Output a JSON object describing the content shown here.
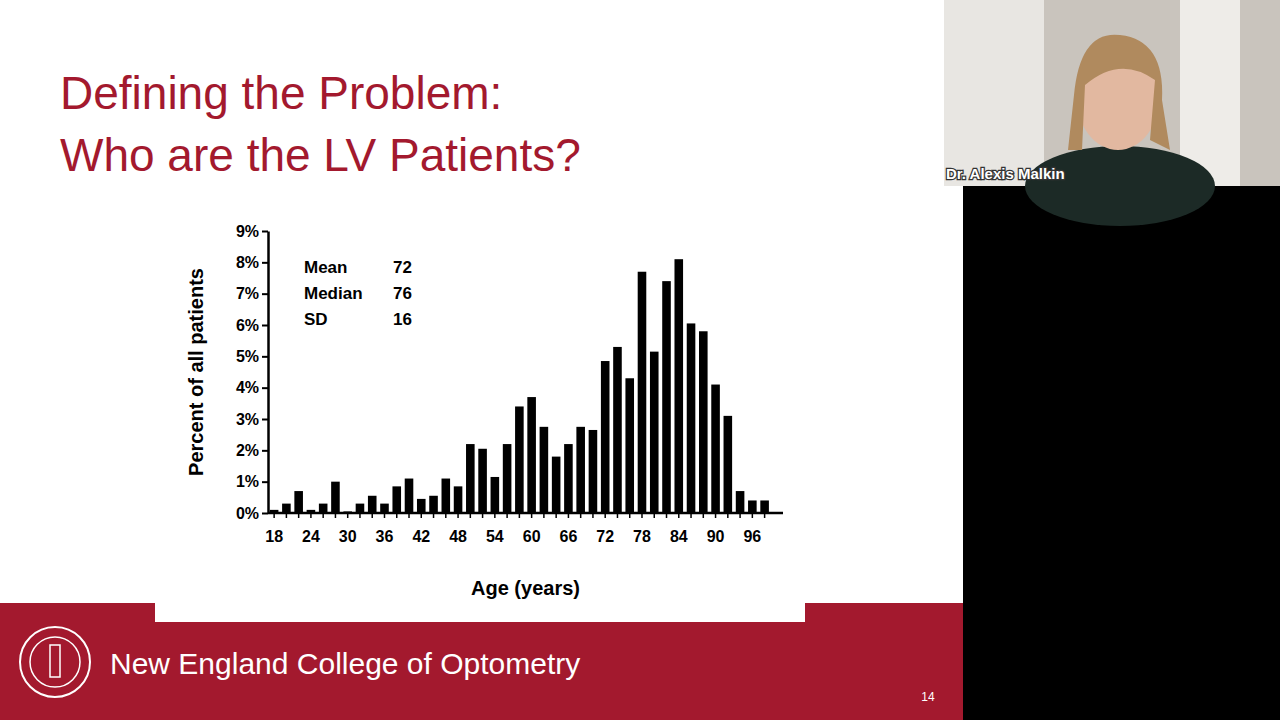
{
  "slide": {
    "title": [
      "Defining the Problem:",
      "Who are the LV Patients?"
    ],
    "footer": "New England College of Optometry",
    "page_number": 14
  },
  "video": {
    "speaker": "Dr. Alexis Malkin"
  },
  "chart_data": {
    "type": "bar",
    "x_label": "Age (years)",
    "y_label": "Percent of all patients",
    "categories": [
      "18",
      null,
      null,
      "24",
      null,
      null,
      "30",
      null,
      null,
      "36",
      null,
      null,
      "42",
      null,
      null,
      "48",
      null,
      null,
      "54",
      null,
      null,
      "60",
      null,
      null,
      "66",
      null,
      null,
      "72",
      null,
      null,
      "78",
      null,
      null,
      "84",
      null,
      null,
      "90",
      null,
      null,
      "96",
      null
    ],
    "values": [
      0.1,
      0.3,
      0.7,
      0.1,
      0.3,
      1.0,
      0.05,
      0.3,
      0.55,
      0.3,
      0.85,
      1.1,
      0.45,
      0.55,
      1.1,
      0.85,
      2.2,
      2.05,
      1.15,
      2.2,
      3.4,
      3.7,
      2.75,
      1.8,
      2.2,
      2.75,
      2.65,
      4.85,
      5.3,
      4.3,
      7.7,
      5.15,
      7.4,
      8.1,
      6.05,
      5.8,
      4.1,
      3.1,
      0.7,
      0.4,
      0.4
    ],
    "color": "#000000",
    "ylim": [
      0,
      9
    ],
    "yticks": [
      {
        "value": 0,
        "label": "0%"
      },
      {
        "value": 1,
        "label": "1%"
      },
      {
        "value": 2,
        "label": "2%"
      },
      {
        "value": 3,
        "label": "3%"
      },
      {
        "value": 4,
        "label": "4%"
      },
      {
        "value": 5,
        "label": "5%"
      },
      {
        "value": 6,
        "label": "6%"
      },
      {
        "value": 7,
        "label": "7%"
      },
      {
        "value": 8,
        "label": "8%"
      },
      {
        "value": 9,
        "label": "9%"
      }
    ],
    "grid": false,
    "annotations": [
      {
        "text": "Mean",
        "value": 72
      },
      {
        "text": "Median",
        "value": 76
      },
      {
        "text": "SD",
        "value": 16
      }
    ]
  }
}
